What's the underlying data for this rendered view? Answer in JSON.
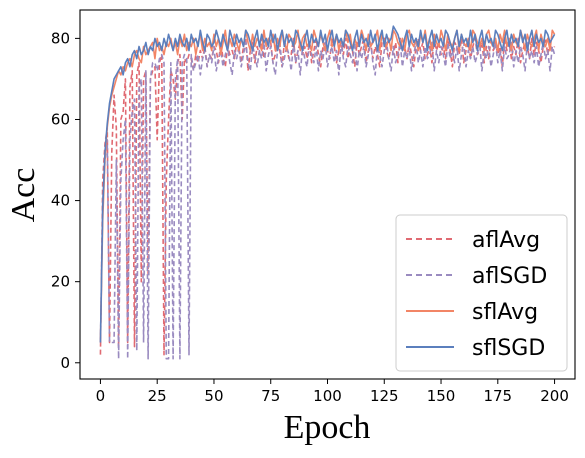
{
  "chart_data": {
    "type": "line",
    "xlabel": "Epoch",
    "ylabel": "Acc",
    "xlim": [
      -9,
      209
    ],
    "ylim": [
      -4,
      87
    ],
    "xticks": [
      0,
      25,
      50,
      75,
      100,
      125,
      150,
      175,
      200
    ],
    "yticks": [
      0,
      20,
      40,
      60,
      80
    ],
    "grid": false,
    "legend_position": "lower-right",
    "x_step": 1,
    "series": [
      {
        "name": "aflAvg",
        "color": "#e06a72",
        "linestyle": "dashed",
        "values": [
          2,
          45,
          54,
          58,
          5,
          52,
          66,
          58,
          4,
          60,
          62,
          70,
          5,
          68,
          72,
          4,
          71,
          74,
          20,
          70,
          72,
          22,
          70,
          72,
          73,
          55,
          74,
          76,
          2,
          45,
          60,
          72,
          70,
          65,
          74,
          76,
          60,
          75,
          74,
          76,
          75,
          72,
          76,
          74,
          77,
          75,
          78,
          73,
          76,
          75,
          78,
          77,
          74,
          79,
          75,
          73,
          78,
          76,
          77,
          75,
          79,
          77,
          74,
          78,
          80,
          72,
          77,
          79,
          74,
          78,
          76,
          80,
          75,
          77,
          78,
          79,
          74,
          76,
          80,
          77,
          73,
          79,
          78,
          75,
          76,
          80,
          74,
          77,
          79,
          76,
          78,
          75,
          79,
          74,
          77,
          80,
          76,
          73,
          78,
          79,
          77,
          75,
          80,
          78,
          74,
          77,
          79,
          76,
          80,
          75,
          78,
          77,
          73,
          79,
          76,
          78,
          80,
          74,
          77,
          79,
          75,
          78,
          76,
          73,
          79,
          80,
          77,
          75,
          78,
          76,
          79,
          74,
          80,
          77,
          78,
          75,
          79,
          76,
          73,
          78,
          80,
          77,
          79,
          75,
          76,
          78,
          74,
          80,
          77,
          79,
          76,
          78,
          75,
          80,
          77,
          73,
          79,
          78,
          76,
          80,
          74,
          77,
          79,
          75,
          78,
          80,
          76,
          77,
          79,
          74,
          78,
          75,
          80,
          77,
          79,
          76,
          78,
          73,
          80,
          77,
          79,
          75,
          78,
          76,
          80,
          74,
          77,
          79,
          78,
          75,
          80,
          76,
          79,
          77,
          74,
          78,
          80,
          76,
          79,
          77,
          78
        ]
      },
      {
        "name": "aflSGD",
        "color": "#9a8bc0",
        "linestyle": "dashed",
        "values": [
          5,
          40,
          50,
          55,
          5,
          5,
          5,
          50,
          1,
          45,
          55,
          60,
          1,
          55,
          62,
          65,
          3,
          68,
          70,
          5,
          72,
          1,
          70,
          74,
          74,
          72,
          75,
          76,
          74,
          1,
          1,
          74,
          1,
          70,
          75,
          1,
          74,
          76,
          75,
          2,
          76,
          72,
          74,
          76,
          71,
          75,
          77,
          73,
          76,
          74,
          78,
          72,
          75,
          77,
          73,
          76,
          78,
          74,
          71,
          77,
          75,
          78,
          73,
          76,
          79,
          74,
          72,
          78,
          76,
          73,
          77,
          75,
          79,
          72,
          76,
          78,
          74,
          71,
          77,
          79,
          73,
          75,
          78,
          76,
          72,
          79,
          74,
          77,
          71,
          78,
          75,
          73,
          79,
          76,
          74,
          78,
          72,
          77,
          75,
          79,
          73,
          76,
          78,
          74,
          77,
          71,
          79,
          75,
          73,
          78,
          76,
          74,
          79,
          72,
          77,
          75,
          78,
          73,
          76,
          79,
          74,
          71,
          78,
          76,
          73,
          77,
          79,
          75,
          72,
          78,
          74,
          76,
          79,
          73,
          77,
          75,
          78,
          72,
          76,
          79,
          74,
          77,
          73,
          78,
          75,
          76,
          79,
          72,
          77,
          74,
          78,
          76,
          73,
          79,
          75,
          77,
          74,
          78,
          72,
          76,
          79,
          73,
          77,
          75,
          78,
          74,
          76,
          79,
          72,
          77,
          75,
          78,
          73,
          76,
          79,
          74,
          77,
          72,
          78,
          75,
          76,
          79,
          73,
          77,
          74,
          78,
          76,
          72,
          79,
          75,
          77,
          74,
          78,
          73,
          76,
          79,
          75,
          77,
          72,
          78,
          76
        ]
      },
      {
        "name": "sflAvg",
        "color": "#f28566",
        "linestyle": "solid",
        "values": [
          5,
          35,
          50,
          58,
          63,
          66,
          68,
          70,
          72,
          71,
          73,
          72,
          74,
          75,
          73,
          76,
          77,
          75,
          74,
          78,
          76,
          77,
          78,
          79,
          75,
          80,
          77,
          78,
          76,
          79,
          78,
          80,
          77,
          79,
          76,
          80,
          78,
          81,
          77,
          79,
          78,
          80,
          76,
          79,
          81,
          77,
          80,
          78,
          79,
          77,
          81,
          78,
          80,
          76,
          79,
          82,
          77,
          80,
          78,
          81,
          79,
          77,
          80,
          78,
          82,
          79,
          77,
          81,
          78,
          80,
          79,
          77,
          82,
          78,
          80,
          79,
          81,
          77,
          80,
          78,
          82,
          79,
          77,
          81,
          80,
          78,
          79,
          82,
          77,
          80,
          81,
          78,
          79,
          77,
          82,
          80,
          78,
          81,
          79,
          77,
          80,
          82,
          78,
          79,
          81,
          77,
          80,
          78,
          82,
          79,
          81,
          77,
          80,
          78,
          79,
          82,
          80,
          77,
          81,
          78,
          79,
          80,
          82,
          77,
          81,
          79,
          78,
          80,
          77,
          82,
          81,
          79,
          78,
          80,
          77,
          81,
          82,
          79,
          78,
          80,
          77,
          81,
          79,
          82,
          78,
          80,
          77,
          81,
          79,
          78,
          82,
          80,
          77,
          81,
          79,
          78,
          80,
          82,
          77,
          81,
          79,
          78,
          80,
          77,
          82,
          81,
          79,
          78,
          80,
          77,
          81,
          82,
          79,
          78,
          80,
          77,
          81,
          79,
          82,
          78,
          80,
          77,
          81,
          79,
          78,
          82,
          80,
          77,
          81,
          79,
          78,
          80,
          82,
          77,
          81,
          79,
          78,
          80,
          77,
          82,
          81
        ]
      },
      {
        "name": "sflSGD",
        "color": "#5b7fbd",
        "linestyle": "solid",
        "values": [
          5,
          38,
          52,
          59,
          64,
          67,
          70,
          71,
          72,
          73,
          71,
          74,
          75,
          73,
          76,
          77,
          75,
          78,
          76,
          77,
          79,
          76,
          78,
          77,
          80,
          78,
          79,
          77,
          80,
          78,
          81,
          79,
          77,
          80,
          78,
          81,
          79,
          78,
          80,
          77,
          81,
          79,
          80,
          78,
          82,
          79,
          77,
          81,
          80,
          78,
          79,
          82,
          80,
          78,
          81,
          79,
          77,
          82,
          80,
          78,
          81,
          79,
          80,
          78,
          82,
          81,
          79,
          77,
          80,
          82,
          78,
          81,
          79,
          80,
          78,
          82,
          79,
          81,
          77,
          80,
          82,
          78,
          81,
          79,
          80,
          78,
          82,
          81,
          79,
          77,
          80,
          82,
          78,
          81,
          79,
          80,
          78,
          82,
          79,
          81,
          77,
          80,
          82,
          78,
          81,
          79,
          80,
          78,
          82,
          81,
          79,
          77,
          80,
          82,
          78,
          81,
          79,
          80,
          78,
          82,
          79,
          81,
          77,
          80,
          82,
          78,
          81,
          79,
          80,
          83,
          82,
          81,
          79,
          77,
          80,
          82,
          78,
          81,
          79,
          80,
          78,
          82,
          79,
          81,
          77,
          80,
          82,
          78,
          81,
          79,
          80,
          78,
          82,
          81,
          79,
          77,
          80,
          82,
          78,
          81,
          79,
          80,
          78,
          82,
          79,
          81,
          77,
          80,
          82,
          78,
          81,
          79,
          80,
          78,
          82,
          81,
          79,
          77,
          80,
          82,
          78,
          81,
          79,
          80,
          78,
          82,
          79,
          81,
          77,
          80,
          82,
          78,
          81,
          79,
          80,
          78,
          82,
          81,
          79,
          80,
          81
        ]
      }
    ]
  }
}
